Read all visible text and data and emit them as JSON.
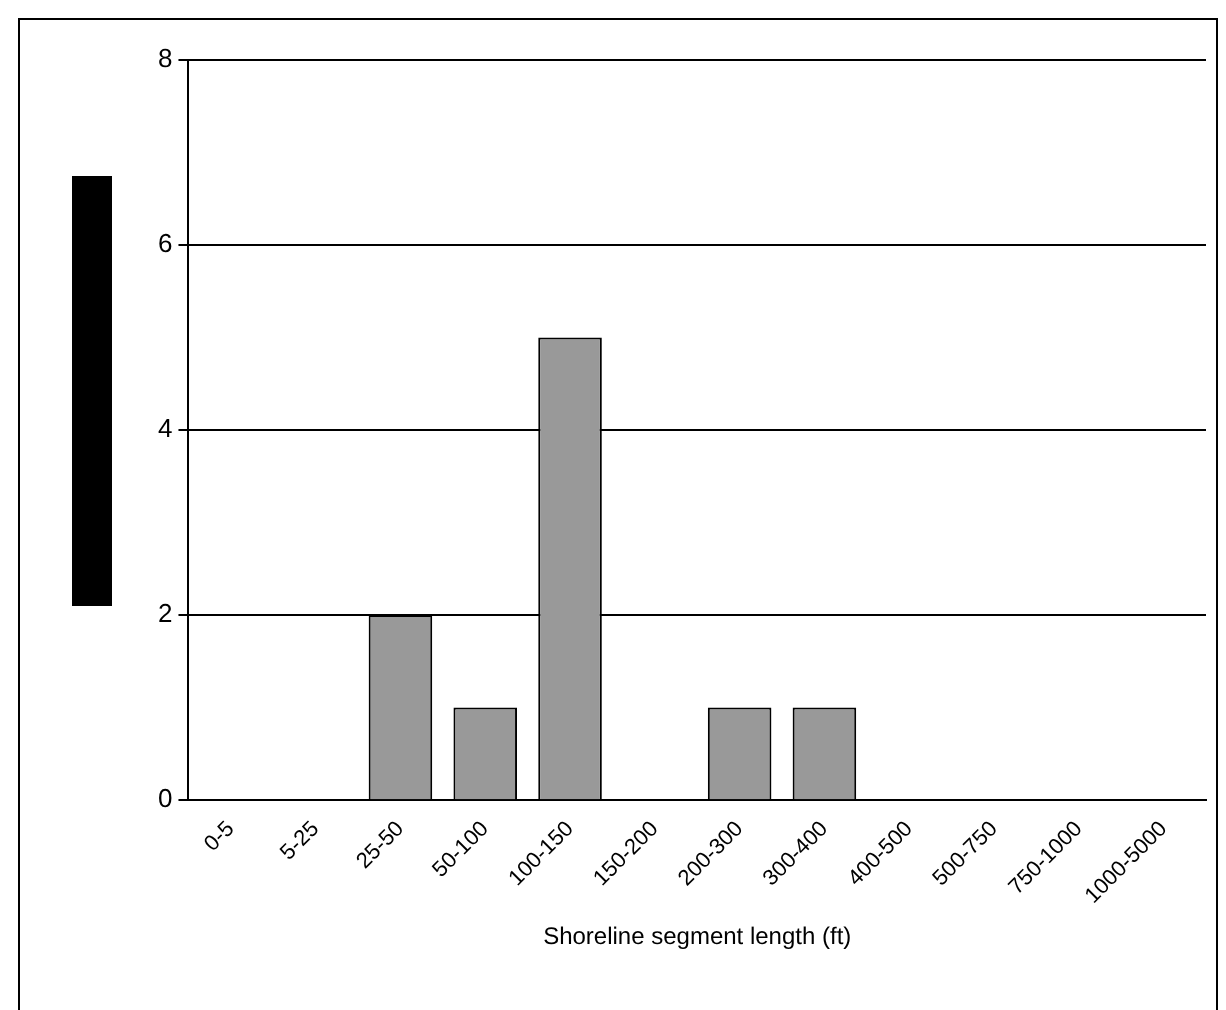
{
  "chart_data": {
    "type": "bar",
    "xlabel": "Shoreline segment length (ft)",
    "categories": [
      "0-5",
      "5-25",
      "25-50",
      "50-100",
      "100-150",
      "150-200",
      "200-300",
      "300-400",
      "400-500",
      "500-750",
      "750-1000",
      "1000-5000"
    ],
    "values": [
      0,
      0,
      2,
      1,
      5,
      0,
      1,
      1,
      0,
      0,
      0,
      0
    ],
    "color": "#999999",
    "ylim": [
      0,
      8
    ],
    "yticks": [
      0,
      2,
      4,
      6,
      8
    ],
    "grid": "y",
    "legend": false
  }
}
